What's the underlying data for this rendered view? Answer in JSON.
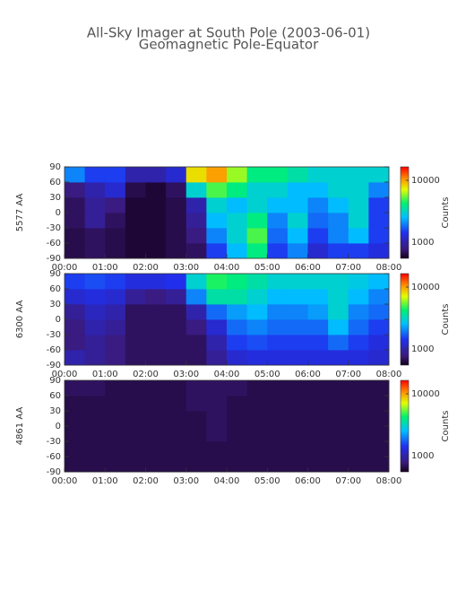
{
  "title": "All-Sky Imager at South Pole (2003-06-01)",
  "subtitle": "Geomagnetic Pole-Equator",
  "chart_data": [
    {
      "type": "heatmap",
      "ylabel": "5577 AA",
      "colorbar_label": "Counts",
      "x_edges": [
        0,
        0.5,
        1,
        1.5,
        2,
        2.5,
        3,
        3.5,
        4,
        4.5,
        5,
        5.5,
        6,
        6.5,
        7,
        7.5,
        8
      ],
      "y_edges": [
        -90,
        -60,
        -30,
        0,
        30,
        60,
        90
      ],
      "z": [
        [
          650,
          700,
          650,
          600,
          600,
          650,
          700,
          1500,
          2500,
          4000,
          1500,
          2000,
          1200,
          1500,
          1500,
          1300
        ],
        [
          650,
          700,
          650,
          600,
          600,
          650,
          800,
          2000,
          3000,
          5000,
          1800,
          2500,
          1500,
          2000,
          2500,
          1500
        ],
        [
          700,
          900,
          700,
          600,
          600,
          650,
          900,
          2500,
          3000,
          4000,
          2000,
          3000,
          1800,
          2000,
          3000,
          1500
        ],
        [
          700,
          900,
          800,
          600,
          600,
          650,
          1000,
          3000,
          2500,
          3000,
          2500,
          2500,
          2000,
          2500,
          3000,
          1500
        ],
        [
          800,
          1000,
          1200,
          650,
          600,
          700,
          3000,
          5000,
          4000,
          3000,
          3000,
          2500,
          2500,
          3000,
          3000,
          2000
        ],
        [
          2000,
          1500,
          1500,
          1000,
          1000,
          1200,
          8000,
          10000,
          6000,
          4000,
          4000,
          3500,
          3000,
          3000,
          3000,
          3000
        ]
      ],
      "xlim": [
        0,
        8
      ],
      "xticks": [
        {
          "value": 0,
          "label": "00:00"
        },
        {
          "value": 1,
          "label": "01:00"
        },
        {
          "value": 2,
          "label": "02:00"
        },
        {
          "value": 3,
          "label": "03:00"
        },
        {
          "value": 4,
          "label": "04:00"
        },
        {
          "value": 5,
          "label": "05:00"
        },
        {
          "value": 6,
          "label": "06:00"
        },
        {
          "value": 7,
          "label": "07:00"
        },
        {
          "value": 8,
          "label": "08:00"
        }
      ],
      "ylim": [
        -90,
        90
      ],
      "yticks": [
        -90,
        -60,
        -30,
        0,
        30,
        60,
        90
      ],
      "clim": [
        550,
        16500
      ],
      "cticks": [
        1000,
        10000
      ],
      "log_color": true,
      "colorscale": [
        [
          0,
          "#14001e"
        ],
        [
          0.1,
          "#3a1a7a"
        ],
        [
          0.28,
          "#2030f0"
        ],
        [
          0.45,
          "#00c0ff"
        ],
        [
          0.6,
          "#00f070"
        ],
        [
          0.75,
          "#e0ff00"
        ],
        [
          0.87,
          "#ff9000"
        ],
        [
          1,
          "#ff0000"
        ]
      ]
    },
    {
      "type": "heatmap",
      "ylabel": "6300 AA",
      "colorbar_label": "Counts",
      "x_edges": [
        0,
        0.5,
        1,
        1.5,
        2,
        2.5,
        3,
        3.5,
        4,
        4.5,
        5,
        5.5,
        6,
        6.5,
        7,
        7.5,
        8
      ],
      "y_edges": [
        -90,
        -60,
        -30,
        0,
        30,
        60,
        90
      ],
      "z": [
        [
          1000,
          900,
          800,
          700,
          700,
          700,
          700,
          900,
          1200,
          1300,
          1300,
          1300,
          1300,
          1300,
          1300,
          1200
        ],
        [
          800,
          900,
          800,
          700,
          700,
          700,
          700,
          1000,
          1500,
          1600,
          1500,
          1500,
          1500,
          1800,
          1500,
          1300
        ],
        [
          800,
          1000,
          900,
          700,
          700,
          700,
          800,
          1200,
          1800,
          2000,
          1800,
          1800,
          1800,
          2500,
          1800,
          1500
        ],
        [
          900,
          1100,
          1000,
          700,
          700,
          700,
          1000,
          1800,
          2200,
          2500,
          2000,
          2000,
          2200,
          3000,
          2000,
          1800
        ],
        [
          1200,
          1300,
          1200,
          900,
          800,
          900,
          2000,
          3500,
          3500,
          3000,
          2500,
          2500,
          2500,
          3000,
          2500,
          2000
        ],
        [
          1500,
          1600,
          1500,
          1300,
          1300,
          1400,
          3000,
          4500,
          4000,
          3500,
          3000,
          3000,
          3000,
          3000,
          2800,
          2500
        ]
      ],
      "xlim": [
        0,
        8
      ],
      "xticks": [
        {
          "value": 0,
          "label": "00:00"
        },
        {
          "value": 1,
          "label": "01:00"
        },
        {
          "value": 2,
          "label": "02:00"
        },
        {
          "value": 3,
          "label": "03:00"
        },
        {
          "value": 4,
          "label": "04:00"
        },
        {
          "value": 5,
          "label": "05:00"
        },
        {
          "value": 6,
          "label": "06:00"
        },
        {
          "value": 7,
          "label": "07:00"
        },
        {
          "value": 8,
          "label": "08:00"
        }
      ],
      "ylim": [
        -90,
        90
      ],
      "yticks": [
        -90,
        -60,
        -30,
        0,
        30,
        60,
        90
      ],
      "clim": [
        550,
        16500
      ],
      "cticks": [
        1000,
        10000
      ],
      "log_color": true,
      "colorscale": [
        [
          0,
          "#14001e"
        ],
        [
          0.1,
          "#3a1a7a"
        ],
        [
          0.28,
          "#2030f0"
        ],
        [
          0.45,
          "#00c0ff"
        ],
        [
          0.6,
          "#00f070"
        ],
        [
          0.75,
          "#e0ff00"
        ],
        [
          0.87,
          "#ff9000"
        ],
        [
          1,
          "#ff0000"
        ]
      ]
    },
    {
      "type": "heatmap",
      "ylabel": "4861 AA",
      "colorbar_label": "Counts",
      "x_edges": [
        0,
        0.5,
        1,
        1.5,
        2,
        2.5,
        3,
        3.5,
        4,
        4.5,
        5,
        5.5,
        6,
        6.5,
        7,
        7.5,
        8
      ],
      "y_edges": [
        -90,
        -60,
        -30,
        0,
        30,
        60,
        90
      ],
      "z": [
        [
          650,
          650,
          650,
          650,
          650,
          650,
          650,
          650,
          650,
          650,
          650,
          650,
          650,
          650,
          650,
          650
        ],
        [
          650,
          650,
          650,
          650,
          650,
          650,
          650,
          650,
          650,
          650,
          650,
          650,
          650,
          650,
          650,
          650
        ],
        [
          650,
          650,
          650,
          650,
          650,
          650,
          650,
          700,
          650,
          650,
          650,
          650,
          650,
          650,
          650,
          650
        ],
        [
          650,
          650,
          650,
          650,
          650,
          650,
          650,
          700,
          650,
          650,
          650,
          650,
          650,
          650,
          650,
          650
        ],
        [
          650,
          650,
          650,
          650,
          650,
          650,
          700,
          700,
          650,
          650,
          650,
          650,
          650,
          650,
          650,
          650
        ],
        [
          700,
          700,
          650,
          650,
          650,
          650,
          700,
          700,
          700,
          650,
          650,
          650,
          650,
          650,
          650,
          650
        ]
      ],
      "xlim": [
        0,
        8
      ],
      "xticks": [
        {
          "value": 0,
          "label": "00:00"
        },
        {
          "value": 1,
          "label": "01:00"
        },
        {
          "value": 2,
          "label": "02:00"
        },
        {
          "value": 3,
          "label": "03:00"
        },
        {
          "value": 4,
          "label": "04:00"
        },
        {
          "value": 5,
          "label": "05:00"
        },
        {
          "value": 6,
          "label": "06:00"
        },
        {
          "value": 7,
          "label": "07:00"
        },
        {
          "value": 8,
          "label": "08:00"
        }
      ],
      "ylim": [
        -90,
        90
      ],
      "yticks": [
        -90,
        -60,
        -30,
        0,
        30,
        60,
        90
      ],
      "clim": [
        550,
        16500
      ],
      "cticks": [
        1000,
        10000
      ],
      "log_color": true,
      "colorscale": [
        [
          0,
          "#14001e"
        ],
        [
          0.1,
          "#3a1a7a"
        ],
        [
          0.28,
          "#2030f0"
        ],
        [
          0.45,
          "#00c0ff"
        ],
        [
          0.6,
          "#00f070"
        ],
        [
          0.75,
          "#e0ff00"
        ],
        [
          0.87,
          "#ff9000"
        ],
        [
          1,
          "#ff0000"
        ]
      ]
    }
  ]
}
